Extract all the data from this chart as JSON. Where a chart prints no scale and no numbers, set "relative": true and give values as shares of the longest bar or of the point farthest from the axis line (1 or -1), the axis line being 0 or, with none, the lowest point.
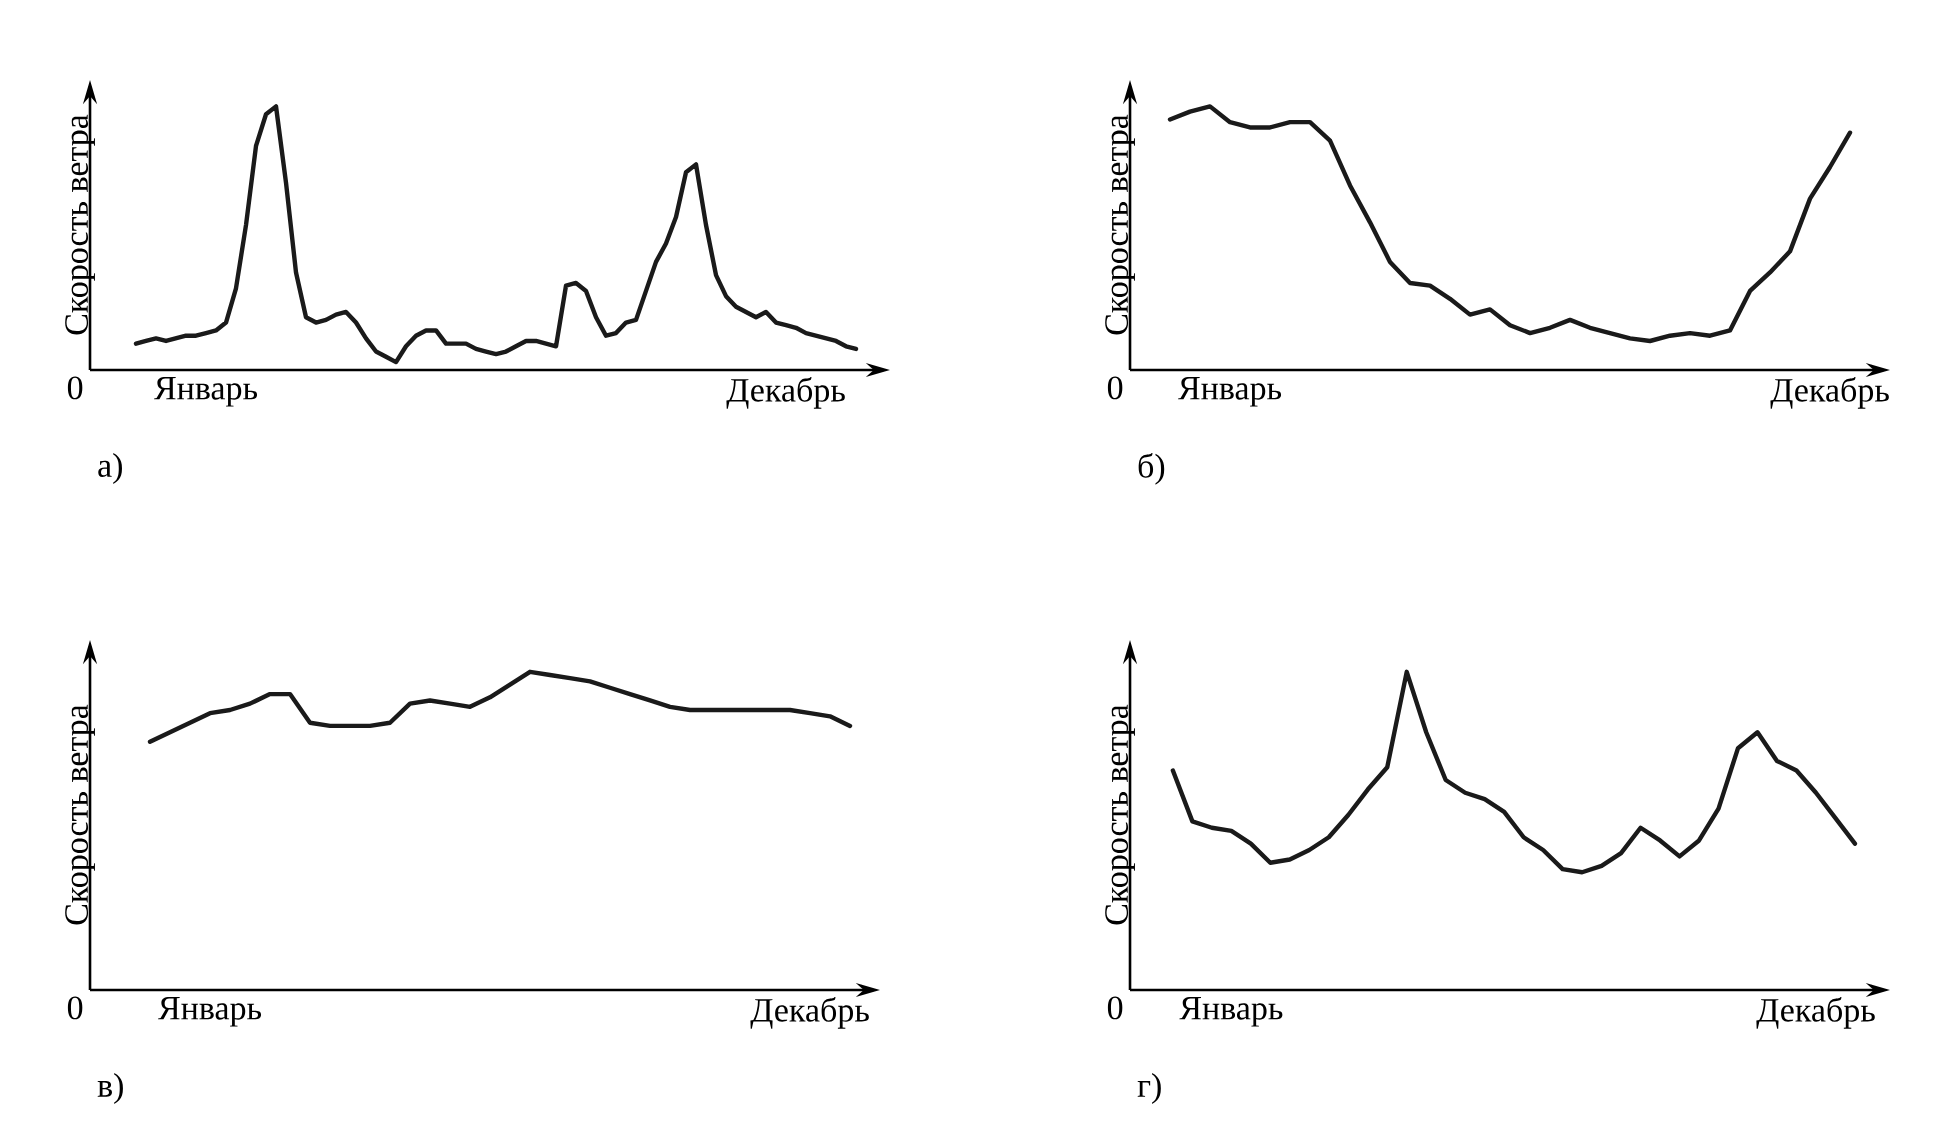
{
  "chart_data": [
    {
      "type": "line",
      "title": "а)",
      "ylabel": "Скорость ветра",
      "relative": true,
      "color": "#1a1a1a",
      "annotations": [
        "0"
      ],
      "categories": [
        null,
        null,
        null,
        null,
        null,
        null,
        null,
        "Январь",
        null,
        null,
        null,
        null,
        null,
        null,
        null,
        null,
        null,
        null,
        null,
        null,
        null,
        null,
        null,
        null,
        null,
        null,
        null,
        null,
        null,
        null,
        null,
        null,
        null,
        null,
        null,
        null,
        null,
        null,
        null,
        null,
        null,
        null,
        null,
        null,
        null,
        null,
        null,
        null,
        null,
        null,
        null,
        null,
        null,
        null,
        null,
        null,
        null,
        null,
        null,
        null,
        null,
        null,
        null,
        null,
        null,
        "Декабрь",
        null,
        null,
        null,
        null,
        null,
        null,
        null
      ],
      "values": [
        0.1,
        0.11,
        0.12,
        0.11,
        0.12,
        0.13,
        0.13,
        0.14,
        0.15,
        0.18,
        0.31,
        0.55,
        0.85,
        0.97,
        1,
        0.71,
        0.37,
        0.2,
        0.18,
        0.19,
        0.21,
        0.22,
        0.18,
        0.12,
        0.07,
        0.05,
        0.03,
        0.09,
        0.13,
        0.15,
        0.15,
        0.1,
        0.1,
        0.1,
        0.08,
        0.07,
        0.06,
        0.07,
        0.09,
        0.11,
        0.11,
        0.1,
        0.09,
        0.32,
        0.33,
        0.3,
        0.2,
        0.13,
        0.14,
        0.18,
        0.19,
        0.3,
        0.41,
        0.48,
        0.58,
        0.75,
        0.78,
        0.55,
        0.36,
        0.28,
        0.24,
        0.22,
        0.2,
        0.22,
        0.18,
        0.17,
        0.16,
        0.14,
        0.13,
        0.12,
        0.11,
        0.09,
        0.08
      ]
    },
    {
      "type": "line",
      "title": "б)",
      "ylabel": "Скорость ветра",
      "relative": true,
      "color": "#1a1a1a",
      "annotations": [
        "0"
      ],
      "categories": [
        null,
        null,
        null,
        "Январь",
        null,
        null,
        null,
        null,
        null,
        null,
        null,
        null,
        null,
        null,
        null,
        null,
        null,
        null,
        null,
        null,
        null,
        null,
        null,
        null,
        null,
        null,
        null,
        null,
        null,
        null,
        null,
        null,
        null,
        "Декабрь",
        null
      ],
      "values": [
        0.95,
        0.98,
        1,
        0.94,
        0.92,
        0.92,
        0.94,
        0.94,
        0.87,
        0.7,
        0.56,
        0.41,
        0.33,
        0.32,
        0.27,
        0.21,
        0.23,
        0.17,
        0.14,
        0.16,
        0.19,
        0.16,
        0.14,
        0.12,
        0.11,
        0.13,
        0.14,
        0.13,
        0.15,
        0.3,
        0.37,
        0.45,
        0.65,
        0.77,
        0.9
      ]
    },
    {
      "type": "line",
      "title": "в)",
      "ylabel": "Скорость ветра",
      "relative": true,
      "color": "#1a1a1a",
      "annotations": [
        "0"
      ],
      "categories": [
        null,
        null,
        null,
        "Январь",
        null,
        null,
        null,
        null,
        null,
        null,
        null,
        null,
        null,
        null,
        null,
        null,
        null,
        null,
        null,
        null,
        null,
        null,
        null,
        null,
        null,
        null,
        null,
        null,
        null,
        null,
        null,
        null,
        null,
        "Декабрь",
        null,
        null
      ],
      "values": [
        0.78,
        0.81,
        0.84,
        0.87,
        0.88,
        0.9,
        0.93,
        0.93,
        0.84,
        0.83,
        0.83,
        0.83,
        0.84,
        0.9,
        0.91,
        0.9,
        0.89,
        0.92,
        0.96,
        1,
        0.99,
        0.98,
        0.97,
        0.95,
        0.93,
        0.91,
        0.89,
        0.88,
        0.88,
        0.88,
        0.88,
        0.88,
        0.88,
        0.87,
        0.86,
        0.83
      ]
    },
    {
      "type": "line",
      "title": "г)",
      "ylabel": "Скорость ветра",
      "relative": true,
      "color": "#1a1a1a",
      "annotations": [
        "0"
      ],
      "categories": [
        null,
        null,
        null,
        "Январь",
        null,
        null,
        null,
        null,
        null,
        null,
        null,
        null,
        null,
        null,
        null,
        null,
        null,
        null,
        null,
        null,
        null,
        null,
        null,
        null,
        null,
        null,
        null,
        null,
        null,
        null,
        null,
        null,
        null,
        "Декабрь",
        null,
        null
      ],
      "values": [
        0.69,
        0.53,
        0.51,
        0.5,
        0.46,
        0.4,
        0.41,
        0.44,
        0.48,
        0.55,
        0.63,
        0.7,
        1,
        0.81,
        0.66,
        0.62,
        0.6,
        0.56,
        0.48,
        0.44,
        0.38,
        0.37,
        0.39,
        0.43,
        0.51,
        0.47,
        0.42,
        0.47,
        0.57,
        0.76,
        0.81,
        0.72,
        0.69,
        0.62,
        0.54,
        0.46
      ]
    }
  ]
}
